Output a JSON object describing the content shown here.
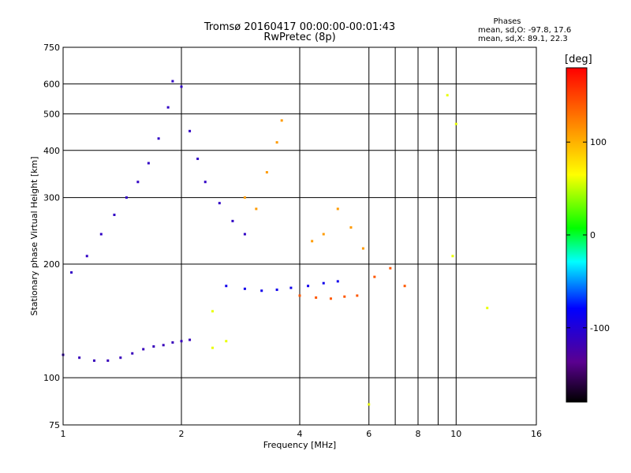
{
  "chart_data": {
    "type": "scatter",
    "title": "Tromsø 20160417 00:00:00-00:01:43",
    "subtitle": "RwPretec (8p)",
    "xlabel": "Frequency [MHz]",
    "ylabel": "Stationary phase Virtual Height [km]",
    "x_scale": "log",
    "y_scale": "log",
    "xlim": [
      1,
      16
    ],
    "ylim": [
      75,
      750
    ],
    "x_ticks": [
      1,
      2,
      4,
      6,
      8,
      10,
      16
    ],
    "x_minor_ticks": [
      7,
      9
    ],
    "y_ticks": [
      75,
      100,
      200,
      300,
      400,
      500,
      600,
      750
    ],
    "grid": true,
    "legend": {
      "header": "Phases",
      "lines": [
        "mean, sd,O: -97.8, 17.6",
        "mean, sd,X:  89.1, 22.3"
      ],
      "placement": "top-right"
    },
    "colorbar": {
      "label": "[deg]",
      "ticks": [
        100,
        0,
        -100
      ],
      "range": [
        -180,
        180
      ],
      "colormap": "rainbow-black-to-red"
    },
    "series": [
      {
        "trace": "O-low-trace",
        "color_value": -115,
        "points": [
          [
            1.0,
            115
          ],
          [
            1.1,
            113
          ],
          [
            1.2,
            111
          ],
          [
            1.3,
            111
          ],
          [
            1.4,
            113
          ],
          [
            1.5,
            116
          ],
          [
            1.6,
            119
          ],
          [
            1.7,
            121
          ],
          [
            1.8,
            122
          ],
          [
            1.9,
            124
          ],
          [
            2.0,
            125
          ],
          [
            2.1,
            126
          ]
        ]
      },
      {
        "trace": "O-dense-cloud",
        "color_value": -110,
        "points": [
          [
            1.05,
            190
          ],
          [
            1.15,
            210
          ],
          [
            1.25,
            240
          ],
          [
            1.35,
            270
          ],
          [
            1.45,
            300
          ],
          [
            1.55,
            330
          ],
          [
            1.65,
            370
          ],
          [
            1.75,
            430
          ],
          [
            1.85,
            520
          ],
          [
            1.9,
            610
          ],
          [
            2.0,
            590
          ],
          [
            2.1,
            450
          ],
          [
            2.2,
            380
          ],
          [
            2.3,
            330
          ],
          [
            2.5,
            290
          ],
          [
            2.7,
            260
          ],
          [
            2.9,
            240
          ]
        ]
      },
      {
        "trace": "O-mid-trace",
        "color_value": -90,
        "points": [
          [
            2.6,
            175
          ],
          [
            2.9,
            172
          ],
          [
            3.2,
            170
          ],
          [
            3.5,
            171
          ],
          [
            3.8,
            173
          ],
          [
            4.2,
            175
          ],
          [
            4.6,
            178
          ],
          [
            5.0,
            180
          ]
        ]
      },
      {
        "trace": "X-trace",
        "color_value": 110,
        "points": [
          [
            2.9,
            300
          ],
          [
            3.1,
            280
          ],
          [
            3.3,
            350
          ],
          [
            3.5,
            420
          ],
          [
            3.6,
            480
          ],
          [
            4.3,
            230
          ],
          [
            4.6,
            240
          ],
          [
            5.0,
            280
          ],
          [
            5.4,
            250
          ],
          [
            5.8,
            220
          ]
        ]
      },
      {
        "trace": "X-low-trace",
        "color_value": 140,
        "points": [
          [
            4.0,
            165
          ],
          [
            4.4,
            163
          ],
          [
            4.8,
            162
          ],
          [
            5.2,
            164
          ],
          [
            5.6,
            165
          ],
          [
            6.2,
            185
          ],
          [
            6.8,
            195
          ],
          [
            7.4,
            175
          ]
        ]
      },
      {
        "trace": "scattered",
        "color_value": 60,
        "points": [
          [
            2.4,
            120
          ],
          [
            2.6,
            125
          ],
          [
            2.4,
            150
          ],
          [
            9.5,
            560
          ],
          [
            10.0,
            470
          ],
          [
            9.8,
            210
          ],
          [
            12.0,
            153
          ],
          [
            6.0,
            85
          ]
        ]
      }
    ]
  }
}
